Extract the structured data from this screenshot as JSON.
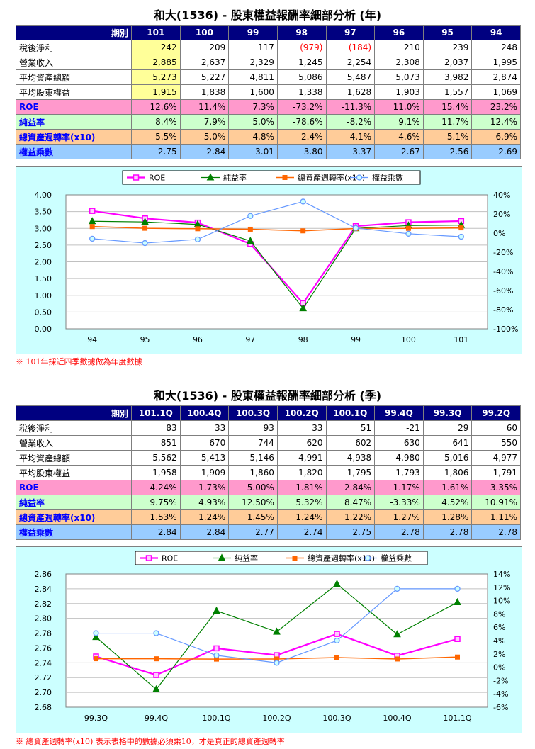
{
  "annual": {
    "title": "和大(1536) - 股東權益報酬率細部分析 (年)",
    "header_label": "期別",
    "periods": [
      "101",
      "100",
      "99",
      "98",
      "97",
      "96",
      "95",
      "94"
    ],
    "rows": [
      {
        "label": "稅後淨利",
        "values": [
          "242",
          "209",
          "117",
          "(979)",
          "(184)",
          "210",
          "239",
          "248"
        ]
      },
      {
        "label": "營業收入",
        "values": [
          "2,885",
          "2,637",
          "2,329",
          "1,245",
          "2,254",
          "2,308",
          "2,037",
          "1,995"
        ]
      },
      {
        "label": "平均資產總額",
        "values": [
          "5,273",
          "5,227",
          "4,811",
          "5,086",
          "5,487",
          "5,073",
          "3,982",
          "2,874"
        ]
      },
      {
        "label": "平均股東權益",
        "values": [
          "1,915",
          "1,838",
          "1,600",
          "1,338",
          "1,628",
          "1,903",
          "1,557",
          "1,069"
        ]
      },
      {
        "label": "ROE",
        "values": [
          "12.6%",
          "11.4%",
          "7.3%",
          "-73.2%",
          "-11.3%",
          "11.0%",
          "15.4%",
          "23.2%"
        ]
      },
      {
        "label": "純益率",
        "values": [
          "8.4%",
          "7.9%",
          "5.0%",
          "-78.6%",
          "-8.2%",
          "9.1%",
          "11.7%",
          "12.4%"
        ]
      },
      {
        "label": "總資產週轉率(x10)",
        "values": [
          "5.5%",
          "5.0%",
          "4.8%",
          "2.4%",
          "4.1%",
          "4.6%",
          "5.1%",
          "6.9%"
        ]
      },
      {
        "label": "權益乘數",
        "values": [
          "2.75",
          "2.84",
          "3.01",
          "3.80",
          "3.37",
          "2.67",
          "2.56",
          "2.69"
        ]
      }
    ],
    "note": "※ 101年採近四季數據做為年度數據"
  },
  "quarterly": {
    "title": "和大(1536) - 股東權益報酬率細部分析 (季)",
    "header_label": "期別",
    "periods": [
      "101.1Q",
      "100.4Q",
      "100.3Q",
      "100.2Q",
      "100.1Q",
      "99.4Q",
      "99.3Q",
      "99.2Q"
    ],
    "rows": [
      {
        "label": "稅後淨利",
        "values": [
          "83",
          "33",
          "93",
          "33",
          "51",
          "-21",
          "29",
          "60"
        ]
      },
      {
        "label": "營業收入",
        "values": [
          "851",
          "670",
          "744",
          "620",
          "602",
          "630",
          "641",
          "550"
        ]
      },
      {
        "label": "平均資產總額",
        "values": [
          "5,562",
          "5,413",
          "5,146",
          "4,991",
          "4,938",
          "4,980",
          "5,016",
          "4,977"
        ]
      },
      {
        "label": "平均股東權益",
        "values": [
          "1,958",
          "1,909",
          "1,860",
          "1,820",
          "1,795",
          "1,793",
          "1,806",
          "1,791"
        ]
      },
      {
        "label": "ROE",
        "values": [
          "4.24%",
          "1.73%",
          "5.00%",
          "1.81%",
          "2.84%",
          "-1.17%",
          "1.61%",
          "3.35%"
        ]
      },
      {
        "label": "純益率",
        "values": [
          "9.75%",
          "4.93%",
          "12.50%",
          "5.32%",
          "8.47%",
          "-3.33%",
          "4.52%",
          "10.91%"
        ]
      },
      {
        "label": "總資產週轉率(x10)",
        "values": [
          "1.53%",
          "1.24%",
          "1.45%",
          "1.24%",
          "1.22%",
          "1.27%",
          "1.28%",
          "1.11%"
        ]
      },
      {
        "label": "權益乘數",
        "values": [
          "2.84",
          "2.84",
          "2.77",
          "2.74",
          "2.75",
          "2.78",
          "2.78",
          "2.78"
        ]
      }
    ],
    "note": "※ 總資產週轉率(x10) 表示表格中的數據必須乘10，才是真正的總資產週轉率"
  },
  "colors": {
    "roe": "#ff00ff",
    "net_margin": "#008000",
    "turnover": "#ff6600",
    "multiplier": "#6699ff",
    "header_bg": "#000080",
    "chart_bg": "#ccffff"
  },
  "chart_data": [
    {
      "type": "line",
      "categories": [
        "94",
        "95",
        "96",
        "97",
        "98",
        "99",
        "100",
        "101"
      ],
      "series": [
        {
          "name": "ROE",
          "axis": "right",
          "values": [
            23.2,
            15.4,
            11.0,
            -11.3,
            -73.2,
            7.3,
            11.4,
            12.6
          ]
        },
        {
          "name": "純益率",
          "axis": "right",
          "values": [
            12.4,
            11.7,
            9.1,
            -8.2,
            -78.6,
            5.0,
            7.9,
            8.4
          ]
        },
        {
          "name": "總資產週轉率(x10)",
          "axis": "right",
          "values": [
            6.9,
            5.1,
            4.6,
            4.1,
            2.4,
            4.8,
            5.0,
            5.5
          ]
        },
        {
          "name": "權益乘數",
          "axis": "left",
          "values": [
            2.69,
            2.56,
            2.67,
            3.37,
            3.8,
            3.01,
            2.84,
            2.75
          ]
        }
      ],
      "y_left": {
        "range": [
          0,
          4
        ],
        "ticks": [
          "0.00",
          "0.50",
          "1.00",
          "1.50",
          "2.00",
          "2.50",
          "3.00",
          "3.50",
          "4.00"
        ]
      },
      "y_right": {
        "range": [
          -100,
          40
        ],
        "ticks": [
          "-100%",
          "-80%",
          "-60%",
          "-40%",
          "-20%",
          "0%",
          "20%",
          "40%"
        ]
      },
      "legend_position": "top"
    },
    {
      "type": "line",
      "categories": [
        "99.3Q",
        "99.4Q",
        "100.1Q",
        "100.2Q",
        "100.3Q",
        "100.4Q",
        "101.1Q"
      ],
      "series": [
        {
          "name": "ROE",
          "axis": "right",
          "values": [
            1.61,
            -1.17,
            2.84,
            1.81,
            5.0,
            1.73,
            4.24
          ]
        },
        {
          "name": "純益率",
          "axis": "right",
          "values": [
            4.52,
            -3.33,
            8.47,
            5.32,
            12.5,
            4.93,
            9.75
          ]
        },
        {
          "name": "總資產週轉率(x10)",
          "axis": "right",
          "values": [
            1.28,
            1.27,
            1.22,
            1.24,
            1.45,
            1.24,
            1.53
          ]
        },
        {
          "name": "權益乘數",
          "axis": "left",
          "values": [
            2.78,
            2.78,
            2.75,
            2.74,
            2.77,
            2.84,
            2.84
          ]
        }
      ],
      "y_left": {
        "range": [
          2.68,
          2.86
        ],
        "ticks": [
          "2.68",
          "2.70",
          "2.72",
          "2.74",
          "2.76",
          "2.78",
          "2.80",
          "2.82",
          "2.84",
          "2.86"
        ]
      },
      "y_right": {
        "range": [
          -6,
          14
        ],
        "ticks": [
          "-6%",
          "-4%",
          "-2%",
          "0%",
          "2%",
          "4%",
          "6%",
          "8%",
          "10%",
          "12%",
          "14%"
        ]
      },
      "legend_position": "top"
    }
  ]
}
